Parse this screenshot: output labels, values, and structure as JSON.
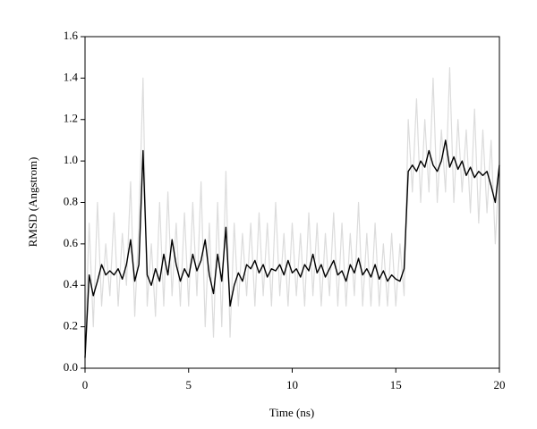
{
  "chart_data": {
    "type": "line",
    "xlabel": "Time (ns)",
    "ylabel": "RMSD (Angstrom)",
    "x": [
      0,
      0.2,
      0.4,
      0.6,
      0.8,
      1,
      1.2,
      1.4,
      1.6,
      1.8,
      2,
      2.2,
      2.4,
      2.6,
      2.8,
      3,
      3.2,
      3.4,
      3.6,
      3.8,
      4,
      4.2,
      4.4,
      4.6,
      4.8,
      5,
      5.2,
      5.4,
      5.6,
      5.8,
      6,
      6.2,
      6.4,
      6.6,
      6.8,
      7,
      7.2,
      7.4,
      7.6,
      7.8,
      8,
      8.2,
      8.4,
      8.6,
      8.8,
      9,
      9.2,
      9.4,
      9.6,
      9.8,
      10,
      10.2,
      10.4,
      10.6,
      10.8,
      11,
      11.2,
      11.4,
      11.6,
      11.8,
      12,
      12.2,
      12.4,
      12.6,
      12.8,
      13,
      13.2,
      13.4,
      13.6,
      13.8,
      14,
      14.2,
      14.4,
      14.6,
      14.8,
      15,
      15.2,
      15.4,
      15.6,
      15.8,
      16,
      16.2,
      16.4,
      16.6,
      16.8,
      17,
      17.2,
      17.4,
      17.6,
      17.8,
      18,
      18.2,
      18.4,
      18.6,
      18.8,
      19,
      19.2,
      19.4,
      19.6,
      19.8,
      20
    ],
    "series": [
      {
        "color": "#dcdcdc",
        "values": [
          0.1,
          0.7,
          0.2,
          0.8,
          0.3,
          0.6,
          0.35,
          0.75,
          0.3,
          0.65,
          0.4,
          0.9,
          0.25,
          0.7,
          1.4,
          0.3,
          0.6,
          0.25,
          0.8,
          0.3,
          0.85,
          0.35,
          0.7,
          0.3,
          0.75,
          0.3,
          0.8,
          0.35,
          0.9,
          0.2,
          0.7,
          0.15,
          0.8,
          0.2,
          0.95,
          0.15,
          0.7,
          0.3,
          0.65,
          0.35,
          0.7,
          0.3,
          0.75,
          0.35,
          0.7,
          0.3,
          0.8,
          0.35,
          0.65,
          0.3,
          0.7,
          0.35,
          0.65,
          0.3,
          0.75,
          0.35,
          0.7,
          0.3,
          0.65,
          0.35,
          0.75,
          0.3,
          0.7,
          0.3,
          0.65,
          0.35,
          0.8,
          0.3,
          0.65,
          0.3,
          0.7,
          0.3,
          0.6,
          0.3,
          0.65,
          0.3,
          0.6,
          0.35,
          1.2,
          0.85,
          1.3,
          0.8,
          1.2,
          0.85,
          1.4,
          0.8,
          1.15,
          0.85,
          1.45,
          0.8,
          1.2,
          0.85,
          1.15,
          0.75,
          1.25,
          0.7,
          1.15,
          0.75,
          1.1,
          0.6,
          1.0
        ]
      },
      {
        "color": "#000000",
        "values": [
          0.05,
          0.45,
          0.35,
          0.42,
          0.5,
          0.45,
          0.47,
          0.45,
          0.48,
          0.43,
          0.5,
          0.62,
          0.42,
          0.5,
          1.05,
          0.45,
          0.4,
          0.48,
          0.42,
          0.55,
          0.45,
          0.62,
          0.5,
          0.42,
          0.48,
          0.44,
          0.55,
          0.47,
          0.52,
          0.62,
          0.45,
          0.36,
          0.55,
          0.42,
          0.68,
          0.3,
          0.4,
          0.46,
          0.42,
          0.5,
          0.48,
          0.52,
          0.46,
          0.5,
          0.44,
          0.48,
          0.47,
          0.5,
          0.45,
          0.52,
          0.46,
          0.48,
          0.44,
          0.5,
          0.47,
          0.55,
          0.46,
          0.5,
          0.44,
          0.48,
          0.52,
          0.45,
          0.47,
          0.42,
          0.5,
          0.46,
          0.53,
          0.45,
          0.48,
          0.44,
          0.5,
          0.43,
          0.47,
          0.42,
          0.45,
          0.43,
          0.42,
          0.48,
          0.95,
          0.98,
          0.95,
          1.0,
          0.97,
          1.05,
          0.98,
          0.95,
          1.0,
          1.1,
          0.97,
          1.02,
          0.96,
          1.0,
          0.93,
          0.97,
          0.92,
          0.95,
          0.93,
          0.95,
          0.88,
          0.8,
          0.98
        ]
      }
    ],
    "xlim": [
      0,
      20
    ],
    "xticks": [
      0,
      5,
      10,
      15,
      20
    ],
    "ylim": [
      0,
      1.6
    ],
    "yticks": [
      {
        "value": 0,
        "label": "0.0"
      },
      {
        "value": 0.2,
        "label": "0.2"
      },
      {
        "value": 0.4,
        "label": "0.4"
      },
      {
        "value": 0.6,
        "label": "0.6"
      },
      {
        "value": 0.8,
        "label": "0.8"
      },
      {
        "value": 1,
        "label": "1.0"
      },
      {
        "value": 1.2,
        "label": "1.2"
      },
      {
        "value": 1.4,
        "label": "1.4"
      },
      {
        "value": 1.6,
        "label": "1.6"
      }
    ]
  }
}
